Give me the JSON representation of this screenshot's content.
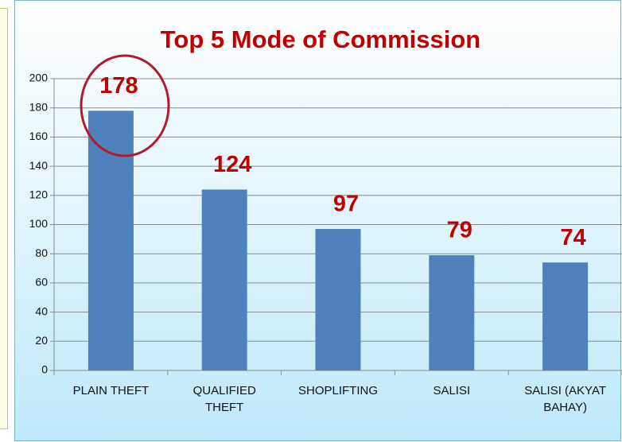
{
  "chart_data": {
    "type": "bar",
    "title": "Top 5  Mode of Commission",
    "categories": [
      "PLAIN THEFT",
      "QUALIFIED THEFT",
      "SHOPLIFTING",
      "SALISI",
      "SALISI (AKYAT BAHAY)"
    ],
    "values": [
      178,
      124,
      97,
      79,
      74
    ],
    "color": "#4f81bd",
    "label_color": "#c00000",
    "ylim": [
      0,
      200
    ],
    "yticks": [
      0,
      20,
      40,
      60,
      80,
      100,
      120,
      140,
      160,
      180,
      200
    ],
    "grid": true
  }
}
